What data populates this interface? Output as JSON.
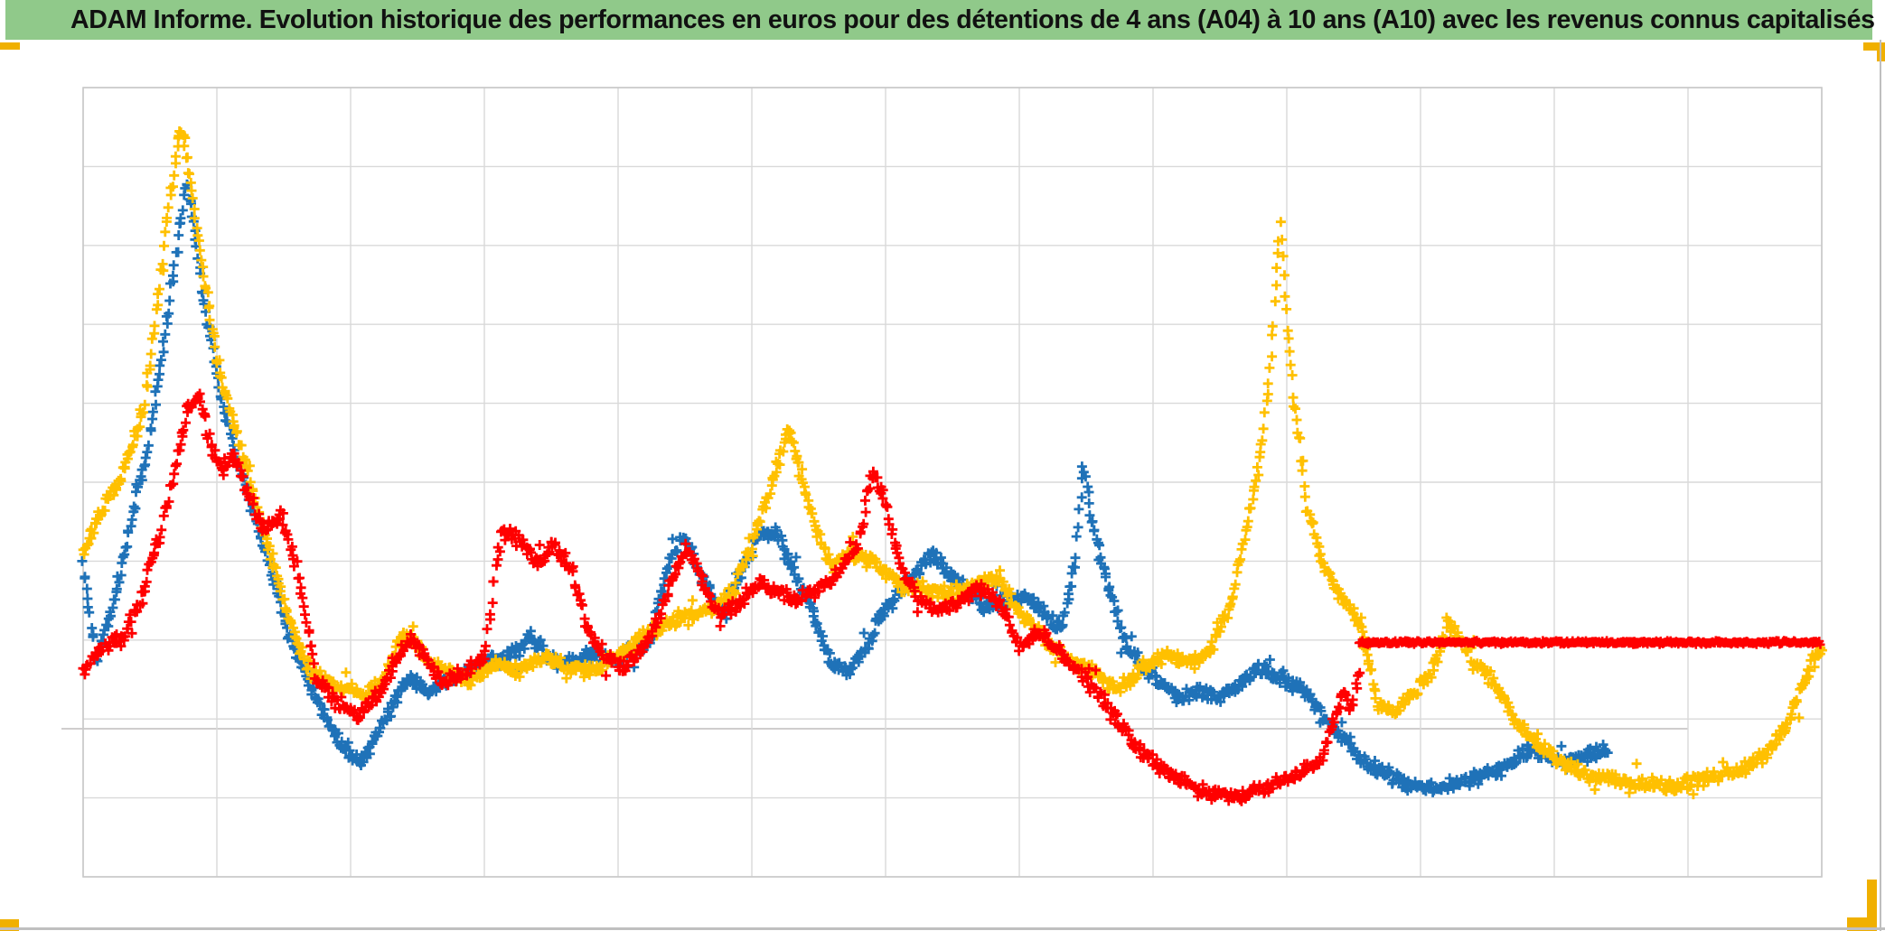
{
  "header": {
    "title": "ADAM Informe. Evolution historique des performances en euros pour des détentions de 4 ans (A04) à 10 ans (A10) avec les revenus connus capitalisés",
    "bar_color": "#90C98A"
  },
  "decorations": {
    "accent_color": "#F0B000",
    "edge_rule_color": "#BFBFBF",
    "background_line_color": "#CFCDCD"
  },
  "chart_data": {
    "type": "scatter",
    "title": "ADAM Informe. Evolution historique des performances en euros pour des détentions de 4 ans (A04) à 10 ans (A10) avec les revenus connus capitalisés",
    "marker": "plus",
    "gridline_color": "#D9D9D9",
    "border_color": "#C9C9C9",
    "x_axis": {
      "divisions": 13,
      "labels_visible": false
    },
    "y_axis": {
      "divisions": 10,
      "labels_visible": false
    },
    "legend": "none",
    "series": [
      {
        "name": "serie-bleue",
        "color": "#1F72B8",
        "marker": "plus",
        "count": 1300,
        "jitter": 9,
        "seed": 11,
        "control": [
          0,
          3.95,
          0.1,
          2.7,
          0.25,
          3.6,
          0.37,
          4.6,
          0.48,
          5.4,
          0.58,
          6.5,
          0.68,
          7.7,
          0.77,
          8.8,
          0.83,
          8.3,
          0.9,
          7.3,
          0.97,
          6.7,
          1.05,
          5.9,
          1.15,
          5.3,
          1.28,
          4.6,
          1.42,
          3.8,
          1.56,
          3.0,
          1.7,
          2.4,
          1.85,
          1.9,
          2.0,
          1.55,
          2.08,
          1.45,
          2.2,
          1.8,
          2.35,
          2.3,
          2.45,
          2.5,
          2.6,
          2.35,
          2.75,
          2.5,
          2.9,
          2.6,
          3.05,
          2.75,
          3.2,
          2.8,
          3.35,
          3.05,
          3.5,
          2.75,
          3.65,
          2.7,
          3.8,
          2.85,
          3.95,
          2.75,
          4.1,
          2.85,
          4.25,
          3.05,
          4.37,
          3.95,
          4.5,
          4.35,
          4.62,
          3.8,
          4.77,
          3.35,
          4.9,
          3.8,
          5.05,
          4.3,
          5.18,
          4.4,
          5.3,
          3.9,
          5.45,
          3.4,
          5.58,
          2.75,
          5.72,
          2.6,
          5.85,
          2.9,
          6.0,
          3.4,
          6.2,
          3.8,
          6.35,
          4.1,
          6.5,
          3.8,
          6.62,
          3.6,
          6.75,
          3.4,
          6.9,
          3.5,
          7.05,
          3.55,
          7.2,
          3.3,
          7.32,
          3.15,
          7.42,
          4.0,
          7.48,
          5.25,
          7.55,
          4.4,
          7.65,
          3.8,
          7.78,
          3.0,
          7.9,
          2.7,
          8.05,
          2.5,
          8.2,
          2.25,
          8.35,
          2.35,
          8.5,
          2.3,
          8.65,
          2.45,
          8.8,
          2.65,
          8.95,
          2.5,
          9.1,
          2.4,
          9.25,
          2.1,
          9.4,
          1.8,
          9.55,
          1.5,
          9.72,
          1.3,
          9.9,
          1.15,
          10.1,
          1.12,
          10.3,
          1.2,
          10.5,
          1.3,
          10.68,
          1.45,
          10.82,
          1.6,
          10.95,
          1.5,
          11.1,
          1.45,
          11.25,
          1.55,
          11.4,
          1.6
        ]
      },
      {
        "name": "serie-or",
        "color": "#FFC000",
        "marker": "plus",
        "count": 1500,
        "jitter": 9,
        "seed": 7,
        "control": [
          0,
          4.1,
          0.15,
          4.7,
          0.3,
          5.1,
          0.45,
          5.9,
          0.55,
          7.2,
          0.65,
          8.6,
          0.73,
          9.5,
          0.8,
          8.9,
          0.9,
          7.6,
          1.0,
          6.6,
          1.1,
          5.9,
          1.25,
          5.0,
          1.4,
          4.1,
          1.55,
          3.2,
          1.7,
          2.6,
          1.9,
          2.4,
          2.1,
          2.3,
          2.25,
          2.5,
          2.4,
          3.1,
          2.55,
          2.8,
          2.7,
          2.6,
          2.9,
          2.5,
          3.1,
          2.7,
          3.25,
          2.6,
          3.45,
          2.8,
          3.6,
          2.65,
          3.8,
          2.6,
          4.0,
          2.8,
          4.15,
          3.0,
          4.35,
          3.2,
          4.5,
          3.3,
          4.7,
          3.4,
          4.85,
          3.6,
          5.0,
          4.2,
          5.15,
          5.0,
          5.27,
          5.7,
          5.38,
          5.0,
          5.5,
          4.3,
          5.6,
          3.95,
          5.75,
          4.1,
          5.95,
          3.95,
          6.1,
          3.7,
          6.3,
          3.65,
          6.5,
          3.6,
          6.65,
          3.7,
          6.85,
          3.8,
          7.0,
          3.35,
          7.2,
          3.0,
          7.4,
          2.7,
          7.55,
          2.6,
          7.75,
          2.35,
          7.9,
          2.65,
          8.1,
          2.8,
          8.3,
          2.7,
          8.45,
          2.9,
          8.6,
          3.6,
          8.8,
          5.3,
          8.88,
          6.6,
          8.95,
          8.3,
          9.0,
          7.0,
          9.05,
          6.1,
          9.15,
          4.7,
          9.28,
          3.95,
          9.4,
          3.55,
          9.55,
          3.2,
          9.68,
          2.2,
          9.8,
          2.1,
          9.95,
          2.35,
          10.1,
          2.65,
          10.2,
          3.2,
          10.3,
          3.0,
          10.45,
          2.65,
          10.6,
          2.35,
          10.7,
          2.0,
          10.9,
          1.65,
          11.1,
          1.4,
          11.25,
          1.3,
          11.5,
          1.2,
          11.8,
          1.15,
          12.05,
          1.2,
          12.35,
          1.35,
          12.55,
          1.5,
          12.75,
          1.95,
          12.88,
          2.55,
          13.0,
          2.9
        ]
      },
      {
        "name": "serie-rouge",
        "color": "#FF0000",
        "marker": "plus",
        "count": 1000,
        "jitter": 9,
        "seed": 23,
        "control": [
          0,
          2.6,
          0.15,
          2.9,
          0.3,
          3.05,
          0.45,
          3.6,
          0.57,
          4.3,
          0.68,
          5.1,
          0.78,
          5.9,
          0.87,
          6.1,
          0.95,
          5.5,
          1.05,
          5.1,
          1.12,
          5.4,
          1.22,
          4.9,
          1.35,
          4.4,
          1.48,
          4.6,
          1.6,
          3.9,
          1.75,
          2.5,
          1.9,
          2.2,
          2.05,
          2.05,
          2.2,
          2.3,
          2.32,
          2.65,
          2.45,
          3.05,
          2.58,
          2.7,
          2.7,
          2.45,
          2.85,
          2.6,
          3.0,
          2.75,
          3.12,
          4.4,
          3.25,
          4.3,
          3.4,
          4.0,
          3.52,
          4.2,
          3.65,
          3.9,
          3.78,
          3.1,
          3.9,
          2.8,
          4.05,
          2.65,
          4.2,
          2.9,
          4.35,
          3.5,
          4.5,
          4.15,
          4.6,
          3.9,
          4.75,
          3.3,
          4.9,
          3.45,
          5.05,
          3.7,
          5.2,
          3.6,
          5.35,
          3.5,
          5.5,
          3.65,
          5.65,
          3.85,
          5.8,
          4.25,
          5.9,
          5.15,
          6.0,
          4.7,
          6.12,
          3.9,
          6.25,
          3.5,
          6.4,
          3.35,
          6.55,
          3.5,
          6.7,
          3.65,
          6.85,
          3.5,
          7.0,
          2.9,
          7.15,
          3.1,
          7.3,
          2.85,
          7.45,
          2.6,
          7.6,
          2.3,
          7.75,
          1.95,
          7.9,
          1.6,
          8.05,
          1.4,
          8.2,
          1.25,
          8.35,
          1.1,
          8.5,
          1.05,
          8.65,
          1.0,
          8.8,
          1.1,
          8.95,
          1.2,
          9.1,
          1.3,
          9.25,
          1.45,
          9.35,
          1.95,
          9.43,
          2.35,
          9.48,
          2.1,
          9.54,
          2.6
        ]
      }
    ],
    "flat_line": {
      "series": "serie-rouge",
      "color": "#FF0000",
      "y": 2.97,
      "x_start": 9.54,
      "x_end": 12.99,
      "thickness": 5,
      "marker_count": 420,
      "seed": 41
    }
  }
}
